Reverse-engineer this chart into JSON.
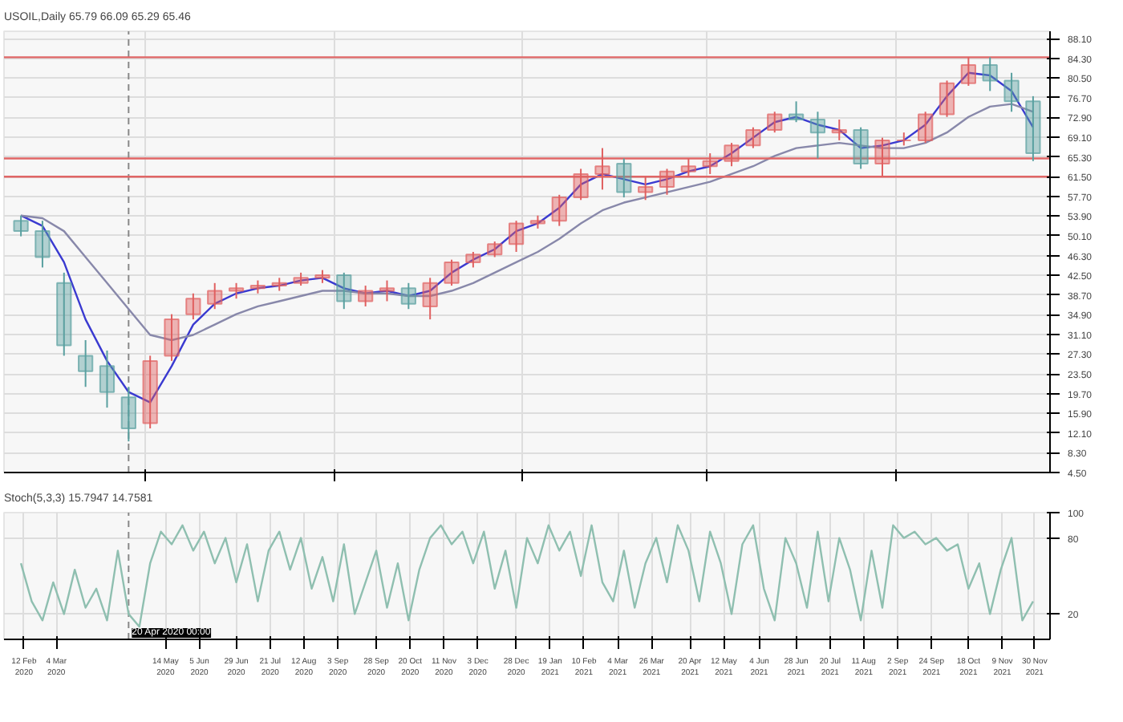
{
  "chart_data": [
    {
      "type": "candlestick",
      "title": "USOIL,Daily  65.79 66.09 65.29 65.46",
      "x": [
        "2020-02-10",
        "2020-02-24",
        "2020-03-09",
        "2020-03-23",
        "2020-04-06",
        "2020-04-20",
        "2020-05-04",
        "2020-05-18",
        "2020-06-01",
        "2020-06-15",
        "2020-06-29",
        "2020-07-13",
        "2020-07-27",
        "2020-08-10",
        "2020-08-24",
        "2020-09-07",
        "2020-09-21",
        "2020-10-05",
        "2020-10-19",
        "2020-11-02",
        "2020-11-16",
        "2020-11-30",
        "2020-12-14",
        "2020-12-28",
        "2021-01-11",
        "2021-01-25",
        "2021-02-08",
        "2021-02-22",
        "2021-03-08",
        "2021-03-22",
        "2021-04-05",
        "2021-04-19",
        "2021-05-03",
        "2021-05-17",
        "2021-05-31",
        "2021-06-14",
        "2021-06-28",
        "2021-07-12",
        "2021-07-26",
        "2021-08-09",
        "2021-08-23",
        "2021-09-06",
        "2021-09-20",
        "2021-10-04",
        "2021-10-18",
        "2021-11-01",
        "2021-11-15",
        "2021-11-29"
      ],
      "ohlc": [
        [
          53,
          54,
          50,
          51
        ],
        [
          51,
          53,
          44,
          46
        ],
        [
          41,
          43,
          27,
          29
        ],
        [
          27,
          30,
          21,
          24
        ],
        [
          25,
          28,
          17,
          20
        ],
        [
          19,
          21,
          10.5,
          13
        ],
        [
          14,
          27,
          13,
          26
        ],
        [
          27,
          35,
          26,
          34
        ],
        [
          35,
          39,
          34,
          38
        ],
        [
          37,
          41,
          36,
          39.5
        ],
        [
          39.5,
          41,
          38,
          40
        ],
        [
          40,
          41.5,
          39,
          40.5
        ],
        [
          40.5,
          42,
          39.5,
          41
        ],
        [
          41,
          43,
          40.5,
          42
        ],
        [
          42,
          43.5,
          41,
          42.5
        ],
        [
          42.5,
          43,
          36,
          37.5
        ],
        [
          37.5,
          40.5,
          36.5,
          39.5
        ],
        [
          39.5,
          41.5,
          37.5,
          40
        ],
        [
          40,
          41,
          36,
          37
        ],
        [
          36.5,
          42,
          34,
          41
        ],
        [
          41,
          45.5,
          40.5,
          45
        ],
        [
          45,
          47,
          44,
          46.5
        ],
        [
          46.5,
          49,
          46,
          48.5
        ],
        [
          48.5,
          53,
          47,
          52.5
        ],
        [
          52.5,
          54,
          51.5,
          53
        ],
        [
          53,
          58,
          52,
          57.5
        ],
        [
          57.5,
          63,
          57,
          62
        ],
        [
          62,
          67,
          59,
          63.5
        ],
        [
          64,
          65,
          57.5,
          58.5
        ],
        [
          58.5,
          61.5,
          57,
          59.5
        ],
        [
          59.5,
          63,
          58,
          62.5
        ],
        [
          62.5,
          65,
          61.5,
          63.5
        ],
        [
          63.5,
          66,
          62,
          64.5
        ],
        [
          64.5,
          68,
          63.5,
          67.5
        ],
        [
          67.5,
          71,
          67,
          70.5
        ],
        [
          70.5,
          74,
          70,
          73.5
        ],
        [
          73.5,
          76,
          72,
          72.5
        ],
        [
          72.5,
          74,
          65,
          70
        ],
        [
          70,
          72.5,
          68.5,
          70.5
        ],
        [
          70.5,
          71,
          63,
          64
        ],
        [
          64,
          69,
          61.5,
          68.5
        ],
        [
          68.5,
          70,
          67.5,
          68.5
        ],
        [
          68.5,
          74,
          68,
          73.5
        ],
        [
          73.5,
          80,
          73,
          79.5
        ],
        [
          79.5,
          84.5,
          79,
          83
        ],
        [
          83,
          84.5,
          78,
          80
        ],
        [
          80,
          81.5,
          74,
          76
        ],
        [
          76,
          77,
          64.5,
          66
        ]
      ],
      "series": [
        {
          "type": "line",
          "color": "#3a3ad0",
          "x": [
            "2020-02-10",
            "2020-02-24",
            "2020-03-09",
            "2020-03-23",
            "2020-04-06",
            "2020-04-20",
            "2020-05-04",
            "2020-05-18",
            "2020-06-01",
            "2020-06-15",
            "2020-06-29",
            "2020-07-13",
            "2020-07-27",
            "2020-08-10",
            "2020-08-24",
            "2020-09-07",
            "2020-09-21",
            "2020-10-05",
            "2020-10-19",
            "2020-11-02",
            "2020-11-16",
            "2020-11-30",
            "2020-12-14",
            "2020-12-28",
            "2021-01-11",
            "2021-01-25",
            "2021-02-08",
            "2021-02-22",
            "2021-03-08",
            "2021-03-22",
            "2021-04-05",
            "2021-04-19",
            "2021-05-03",
            "2021-05-17",
            "2021-05-31",
            "2021-06-14",
            "2021-06-28",
            "2021-07-12",
            "2021-07-26",
            "2021-08-09",
            "2021-08-23",
            "2021-09-06",
            "2021-09-20",
            "2021-10-04",
            "2021-10-18",
            "2021-11-01",
            "2021-11-15",
            "2021-11-29"
          ],
          "values": [
            54,
            52,
            45,
            34,
            26,
            20,
            18,
            25,
            33,
            37,
            39,
            40,
            40.5,
            41.5,
            42,
            40,
            39,
            39.5,
            38.5,
            39.5,
            43,
            45.5,
            47.5,
            51,
            52.5,
            55.5,
            60,
            62,
            61,
            60,
            61,
            62.5,
            63.5,
            66,
            69,
            72,
            73,
            71.5,
            70.5,
            67,
            67.5,
            68.5,
            71.5,
            77,
            81.5,
            81,
            78,
            71
          ]
        },
        {
          "type": "line",
          "color": "#8888aa",
          "x": [
            "2020-02-10",
            "2020-02-24",
            "2020-03-09",
            "2020-03-23",
            "2020-04-06",
            "2020-04-20",
            "2020-05-04",
            "2020-05-18",
            "2020-06-01",
            "2020-06-15",
            "2020-06-29",
            "2020-07-13",
            "2020-07-27",
            "2020-08-10",
            "2020-08-24",
            "2020-09-07",
            "2020-09-21",
            "2020-10-05",
            "2020-10-19",
            "2020-11-02",
            "2020-11-16",
            "2020-11-30",
            "2020-12-14",
            "2020-12-28",
            "2021-01-11",
            "2021-01-25",
            "2021-02-08",
            "2021-02-22",
            "2021-03-08",
            "2021-03-22",
            "2021-04-05",
            "2021-04-19",
            "2021-05-03",
            "2021-05-17",
            "2021-05-31",
            "2021-06-14",
            "2021-06-28",
            "2021-07-12",
            "2021-07-26",
            "2021-08-09",
            "2021-08-23",
            "2021-09-06",
            "2021-09-20",
            "2021-10-04",
            "2021-10-18",
            "2021-11-01",
            "2021-11-15",
            "2021-11-29"
          ],
          "values": [
            54,
            53.5,
            51,
            46,
            41,
            36,
            31,
            30,
            31,
            33,
            35,
            36.5,
            37.5,
            38.5,
            39.5,
            39.5,
            39,
            39,
            38.5,
            38.5,
            39.5,
            41,
            43,
            45,
            47,
            49.5,
            52.5,
            55,
            56.5,
            57.5,
            58.5,
            59.5,
            60.5,
            62,
            63.5,
            65.5,
            67,
            67.5,
            68,
            67.5,
            67,
            67,
            68,
            70,
            73,
            75,
            75.5,
            74
          ]
        },
        {
          "type": "line",
          "color": "#e06666",
          "x": [
            "2020-01-30",
            "2021-12-10"
          ],
          "values": [
            84.5,
            84.5
          ]
        },
        {
          "type": "line",
          "color": "#e06666",
          "x": [
            "2020-01-30",
            "2021-12-10"
          ],
          "values": [
            65.0,
            65.0
          ]
        },
        {
          "type": "line",
          "color": "#e06666",
          "x": [
            "2020-01-30",
            "2021-12-10"
          ],
          "values": [
            61.5,
            61.5
          ]
        }
      ],
      "xlim": [
        "2020-01-30",
        "2021-12-10"
      ],
      "ylim": [
        4.5,
        89.5
      ],
      "yticks": [
        {
          "value": 4.5,
          "label": "4.50"
        },
        {
          "value": 8.3,
          "label": "8.30"
        },
        {
          "value": 12.1,
          "label": "12.10"
        },
        {
          "value": 15.9,
          "label": "15.90"
        },
        {
          "value": 19.7,
          "label": "19.70"
        },
        {
          "value": 23.5,
          "label": "23.50"
        },
        {
          "value": 27.3,
          "label": "27.30"
        },
        {
          "value": 31.1,
          "label": "31.10"
        },
        {
          "value": 34.9,
          "label": "34.90"
        },
        {
          "value": 38.7,
          "label": "38.70"
        },
        {
          "value": 42.5,
          "label": "42.50"
        },
        {
          "value": 46.3,
          "label": "46.30"
        },
        {
          "value": 50.1,
          "label": "50.10"
        },
        {
          "value": 53.9,
          "label": "53.90"
        },
        {
          "value": 57.7,
          "label": "57.70"
        },
        {
          "value": 61.5,
          "label": "61.50"
        },
        {
          "value": 65.3,
          "label": "65.30"
        },
        {
          "value": 69.1,
          "label": "69.10"
        },
        {
          "value": 72.9,
          "label": "72.90"
        },
        {
          "value": 76.7,
          "label": "76.70"
        },
        {
          "value": 80.5,
          "label": "80.50"
        },
        {
          "value": 84.3,
          "label": "84.30"
        },
        {
          "value": 88.1,
          "label": "88.10"
        }
      ],
      "ref_lines": [
        {
          "axis": "x",
          "value": "2020-04-20",
          "color": "#888888",
          "line_style": "dashed"
        }
      ],
      "grid": true,
      "tick_labels": "y"
    },
    {
      "type": "line",
      "title": "Stoch(5,3,3) 15.7947 14.7581",
      "color": "#8fbfb0",
      "x": [
        "2020-02-10",
        "2020-02-17",
        "2020-02-24",
        "2020-03-02",
        "2020-03-09",
        "2020-03-16",
        "2020-03-23",
        "2020-03-30",
        "2020-04-06",
        "2020-04-13",
        "2020-04-20",
        "2020-04-27",
        "2020-05-04",
        "2020-05-11",
        "2020-05-18",
        "2020-05-25",
        "2020-06-01",
        "2020-06-08",
        "2020-06-15",
        "2020-06-22",
        "2020-06-29",
        "2020-07-06",
        "2020-07-13",
        "2020-07-20",
        "2020-07-27",
        "2020-08-03",
        "2020-08-10",
        "2020-08-17",
        "2020-08-24",
        "2020-08-31",
        "2020-09-07",
        "2020-09-14",
        "2020-09-21",
        "2020-09-28",
        "2020-10-05",
        "2020-10-12",
        "2020-10-19",
        "2020-10-26",
        "2020-11-02",
        "2020-11-09",
        "2020-11-16",
        "2020-11-23",
        "2020-11-30",
        "2020-12-07",
        "2020-12-14",
        "2020-12-21",
        "2020-12-28",
        "2021-01-04",
        "2021-01-11",
        "2021-01-18",
        "2021-01-25",
        "2021-02-01",
        "2021-02-08",
        "2021-02-15",
        "2021-02-22",
        "2021-03-01",
        "2021-03-08",
        "2021-03-15",
        "2021-03-22",
        "2021-03-29",
        "2021-04-05",
        "2021-04-12",
        "2021-04-19",
        "2021-04-26",
        "2021-05-03",
        "2021-05-10",
        "2021-05-17",
        "2021-05-24",
        "2021-05-31",
        "2021-06-07",
        "2021-06-14",
        "2021-06-21",
        "2021-06-28",
        "2021-07-05",
        "2021-07-12",
        "2021-07-19",
        "2021-07-26",
        "2021-08-02",
        "2021-08-09",
        "2021-08-16",
        "2021-08-23",
        "2021-08-30",
        "2021-09-06",
        "2021-09-13",
        "2021-09-20",
        "2021-09-27",
        "2021-10-04",
        "2021-10-11",
        "2021-10-18",
        "2021-10-25",
        "2021-11-01",
        "2021-11-08",
        "2021-11-15",
        "2021-11-22",
        "2021-11-29"
      ],
      "values": [
        60,
        30,
        15,
        45,
        20,
        55,
        25,
        40,
        15,
        70,
        20,
        10,
        60,
        85,
        75,
        90,
        70,
        85,
        60,
        80,
        45,
        75,
        30,
        70,
        85,
        55,
        80,
        40,
        65,
        30,
        75,
        20,
        45,
        70,
        25,
        60,
        15,
        55,
        80,
        90,
        75,
        85,
        60,
        85,
        40,
        70,
        25,
        80,
        60,
        90,
        70,
        85,
        50,
        90,
        45,
        30,
        70,
        25,
        60,
        80,
        45,
        90,
        70,
        30,
        85,
        60,
        20,
        75,
        90,
        40,
        15,
        80,
        60,
        25,
        85,
        30,
        80,
        55,
        15,
        70,
        25,
        90,
        80,
        85,
        75,
        80,
        70,
        75,
        40,
        60,
        20,
        55,
        80,
        15,
        30
      ],
      "xlim": [
        "2020-01-30",
        "2021-12-10"
      ],
      "ylim": [
        0,
        100
      ],
      "yticks": [
        20,
        80,
        100
      ],
      "xticks": [
        {
          "value": "2020-02-12",
          "label": "12 Feb 2020"
        },
        {
          "value": "2020-03-04",
          "label": "4 Mar 2020"
        },
        {
          "value": "2020-05-14",
          "label": "14 May 2020"
        },
        {
          "value": "2020-06-05",
          "label": "5 Jun 2020"
        },
        {
          "value": "2020-06-29",
          "label": "29 Jun 2020"
        },
        {
          "value": "2020-07-21",
          "label": "21 Jul 2020"
        },
        {
          "value": "2020-08-12",
          "label": "12 Aug 2020"
        },
        {
          "value": "2020-09-03",
          "label": "3 Sep 2020"
        },
        {
          "value": "2020-09-28",
          "label": "28 Sep 2020"
        },
        {
          "value": "2020-10-20",
          "label": "20 Oct 2020"
        },
        {
          "value": "2020-11-11",
          "label": "11 Nov 2020"
        },
        {
          "value": "2020-12-03",
          "label": "3 Dec 2020"
        },
        {
          "value": "2020-12-28",
          "label": "28 Dec 2020"
        },
        {
          "value": "2021-01-19",
          "label": "19 Jan 2021"
        },
        {
          "value": "2021-02-10",
          "label": "10 Feb 2021"
        },
        {
          "value": "2021-03-04",
          "label": "4 Mar 2021"
        },
        {
          "value": "2021-03-26",
          "label": "26 Mar 2021"
        },
        {
          "value": "2021-04-20",
          "label": "20 Apr 2021"
        },
        {
          "value": "2021-05-12",
          "label": "12 May 2021"
        },
        {
          "value": "2021-06-04",
          "label": "4 Jun 2021"
        },
        {
          "value": "2021-06-28",
          "label": "28 Jun 2021"
        },
        {
          "value": "2021-07-20",
          "label": "20 Jul 2021"
        },
        {
          "value": "2021-08-11",
          "label": "11 Aug 2021"
        },
        {
          "value": "2021-09-02",
          "label": "2 Sep 2021"
        },
        {
          "value": "2021-09-24",
          "label": "24 Sep 2021"
        },
        {
          "value": "2021-10-18",
          "label": "18 Oct 2021"
        },
        {
          "value": "2021-11-09",
          "label": "9 Nov 2021"
        },
        {
          "value": "2021-11-30",
          "label": "30 Nov 2021"
        }
      ],
      "ref_lines": [
        {
          "axis": "x",
          "value": "2020-04-20",
          "label": "20 Apr 2020 00:00",
          "color": "#888888",
          "line_style": "dashed"
        }
      ],
      "grid": true
    }
  ]
}
